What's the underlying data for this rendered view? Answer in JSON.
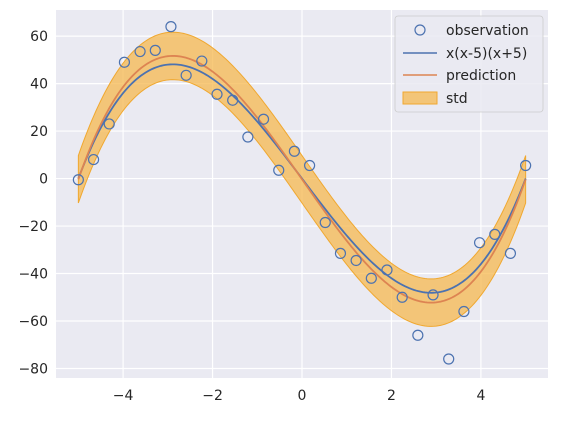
{
  "chart_data": {
    "type": "line",
    "title": "",
    "xlabel": "",
    "ylabel": "",
    "xlim": [
      -5.5,
      5.5
    ],
    "ylim": [
      -84,
      71
    ],
    "grid": true,
    "legend_position": "top-right",
    "xticks": [
      -4,
      -2,
      0,
      2,
      4
    ],
    "yticks": [
      -80,
      -60,
      -40,
      -20,
      0,
      20,
      40,
      60
    ],
    "x_tick_labels": [
      "−4",
      "−2",
      "0",
      "2",
      "4"
    ],
    "y_tick_labels": [
      "−80",
      "−60",
      "−40",
      "−20",
      "0",
      "20",
      "40",
      "60"
    ],
    "observations": {
      "name": "observation",
      "color": "#4c72b0",
      "x": [
        -5.0,
        -4.66,
        -4.31,
        -3.97,
        -3.62,
        -3.28,
        -2.93,
        -2.59,
        -2.24,
        -1.9,
        -1.55,
        -1.21,
        -0.86,
        -0.52,
        -0.17,
        0.17,
        0.52,
        0.86,
        1.21,
        1.55,
        1.9,
        2.24,
        2.59,
        2.93,
        3.28,
        3.62,
        3.97,
        4.31,
        4.66,
        5.0
      ],
      "y": [
        -0.5,
        8,
        23,
        49,
        53.5,
        54,
        64,
        43.5,
        49.5,
        35.5,
        33,
        17.5,
        25,
        3.5,
        11.5,
        5.5,
        -18.5,
        -31.5,
        -34.5,
        -42,
        -38.5,
        -50,
        -66,
        -49,
        -76,
        -56,
        -27,
        -23.5,
        -31.5,
        5.5
      ]
    },
    "true_curve": {
      "name": "x(x-5)(x+5)",
      "color": "#4c72b0"
    },
    "prediction": {
      "name": "prediction",
      "color": "#dd8452",
      "scale": 1.08,
      "offset": -0.3
    },
    "std": {
      "name": "std",
      "color": "#f5b84f",
      "edge_color": "#f0a830",
      "opacity": 0.75,
      "half_width": 10
    }
  }
}
